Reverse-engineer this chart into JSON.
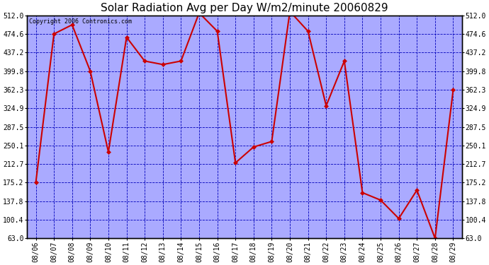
{
  "title": "Solar Radiation Avg per Day W/m2/minute 20060829",
  "copyright": "Copyright 2006 Contronics.com",
  "dates": [
    "08/06",
    "08/07",
    "08/08",
    "08/09",
    "08/10",
    "08/11",
    "08/12",
    "08/13",
    "08/14",
    "08/15",
    "08/16",
    "08/17",
    "08/18",
    "08/19",
    "08/20",
    "08/21",
    "08/22",
    "08/23",
    "08/24",
    "08/25",
    "08/26",
    "08/27",
    "08/28",
    "08/29"
  ],
  "values": [
    175.2,
    474.6,
    493.0,
    399.8,
    237.0,
    468.0,
    420.0,
    413.0,
    420.0,
    517.0,
    480.0,
    215.0,
    247.0,
    258.0,
    520.0,
    480.0,
    330.0,
    420.0,
    155.0,
    140.0,
    103.0,
    160.0,
    63.0,
    362.3
  ],
  "line_color": "#cc0000",
  "marker_color": "#cc0000",
  "figure_bg_color": "#ffffff",
  "plot_bg_color": "#aaaaff",
  "grid_color": "#0000bb",
  "title_color": "#000000",
  "copyright_color": "#000000",
  "yticks": [
    63.0,
    100.4,
    137.8,
    175.2,
    212.7,
    250.1,
    287.5,
    324.9,
    362.3,
    399.8,
    437.2,
    474.6,
    512.0
  ],
  "ytick_labels": [
    "63.0",
    "100.4",
    "137.8",
    "175.2",
    "212.7",
    "250.1",
    "287.5",
    "324.9",
    "362.3",
    "399.8",
    "437.2",
    "474.6",
    "512.0"
  ],
  "title_fontsize": 11,
  "copyright_fontsize": 6,
  "tick_fontsize": 7,
  "marker_size": 3,
  "line_width": 1.5
}
